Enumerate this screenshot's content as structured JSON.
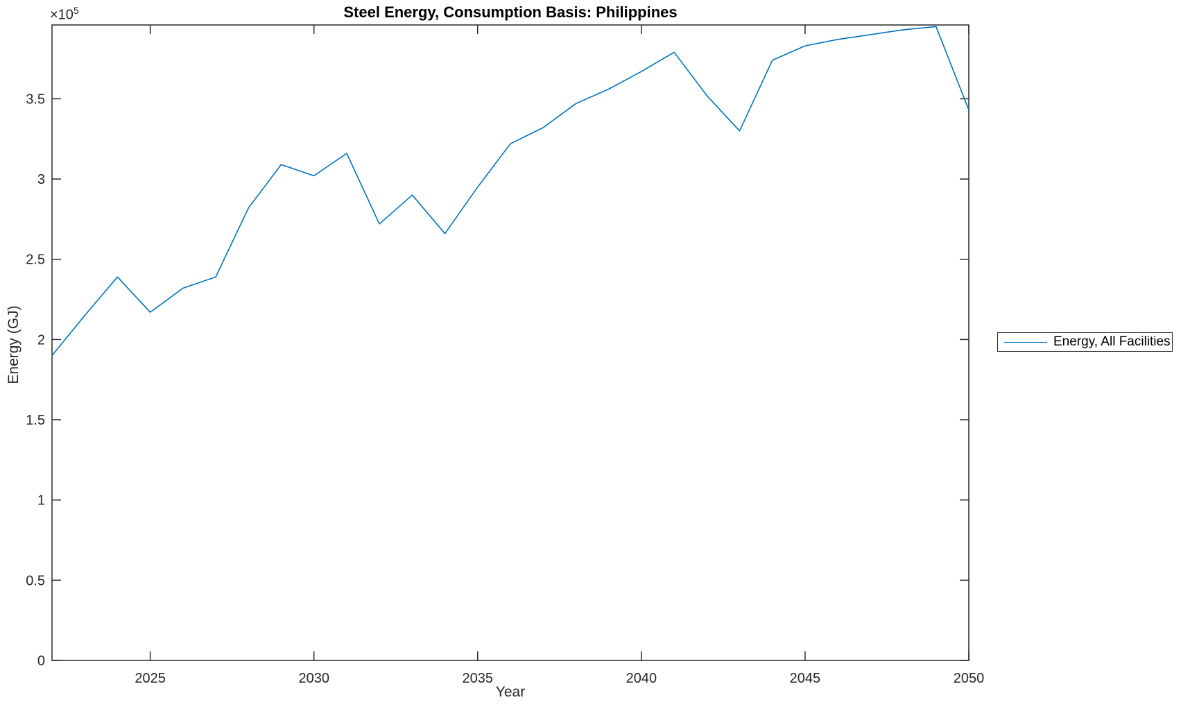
{
  "chart_data": {
    "type": "line",
    "title": "Steel Energy, Consumption Basis: Philippines",
    "xlabel": "Year",
    "ylabel": "Energy (GJ)",
    "y_multiplier_base": "×10",
    "y_multiplier_exp": "5",
    "xlim": [
      2022,
      2050
    ],
    "ylim": [
      0,
      396000
    ],
    "xticks": [
      2025,
      2030,
      2035,
      2040,
      2045,
      2050
    ],
    "xtick_labels": [
      "2025",
      "2030",
      "2035",
      "2040",
      "2045",
      "2050"
    ],
    "yticks": [
      0,
      50000,
      100000,
      150000,
      200000,
      250000,
      300000,
      350000
    ],
    "ytick_labels": [
      "0",
      "0.5",
      "1",
      "1.5",
      "2",
      "2.5",
      "3",
      "3.5"
    ],
    "grid": false,
    "colors": {
      "line": "#0072BD",
      "axis": "#262626",
      "title": "#000000"
    },
    "legend": {
      "position": "right-outside",
      "entries": [
        {
          "label": "Energy, All Facilities",
          "color": "#0072BD"
        }
      ]
    },
    "series": [
      {
        "name": "Energy, All Facilities",
        "color": "#0072BD",
        "x": [
          2022,
          2023,
          2024,
          2025,
          2026,
          2027,
          2028,
          2029,
          2030,
          2031,
          2032,
          2033,
          2034,
          2035,
          2036,
          2037,
          2038,
          2039,
          2040,
          2041,
          2042,
          2043,
          2044,
          2045,
          2046,
          2047,
          2048,
          2049,
          2050
        ],
        "values": [
          190000,
          215000,
          239000,
          217000,
          232000,
          239000,
          282000,
          309000,
          302000,
          316000,
          272000,
          290000,
          266000,
          295000,
          322000,
          332000,
          347000,
          356000,
          367000,
          379000,
          352000,
          330000,
          374000,
          383000,
          387000,
          390000,
          393000,
          395000,
          343000
        ]
      }
    ]
  }
}
